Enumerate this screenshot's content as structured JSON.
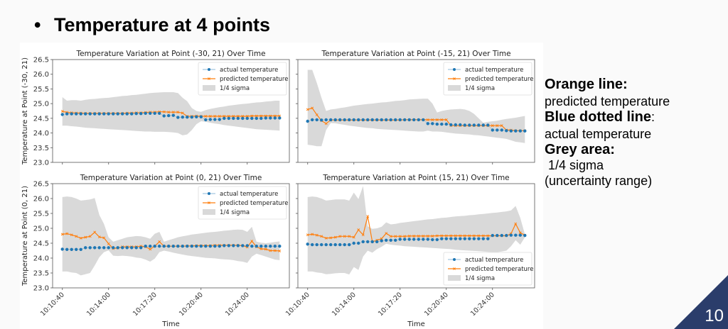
{
  "slide": {
    "bullet": "•",
    "title": "Temperature at 4 points",
    "page_number": "10",
    "accent_color": "#2b3d6b"
  },
  "notes": [
    {
      "heading": "Orange line",
      "sep": ":",
      "text": "predicted temperature"
    },
    {
      "heading": "Blue dotted line",
      "sep": ":",
      "text": "actual temperature"
    },
    {
      "heading": "Grey area:",
      "sep": "",
      "text": " 1/4 sigma",
      "text2": "(uncertainty range)"
    }
  ],
  "colors": {
    "actual": "#1f77b4",
    "predicted": "#ff7f0e",
    "sigma": "#d9d9d9"
  },
  "chart_data": [
    {
      "type": "line",
      "title": "Temperature Variation at Point (-30, 21) Over Time",
      "xlabel": "",
      "ylabel": "Temperature at Point (-30, 21)",
      "ylim": [
        23.0,
        26.5
      ],
      "yticks": [
        "23.0",
        "23.5",
        "24.0",
        "24.5",
        "25.0",
        "25.5",
        "26.0",
        "26.5"
      ],
      "xticks": [
        "10:10:40",
        "10:14:00",
        "10:17:20",
        "10:20:40",
        "10:24:00"
      ],
      "show_xtick_labels": false,
      "show_ytick_labels": true,
      "legend": [
        "actual temperature",
        "predicted temperature",
        "1/4 sigma"
      ],
      "legend_position": "top-right",
      "x_start": "10:10:40",
      "x_step_seconds": 20,
      "series": [
        {
          "name": "actual temperature",
          "values": [
            24.63,
            24.65,
            24.65,
            24.65,
            24.65,
            24.65,
            24.65,
            24.65,
            24.65,
            24.65,
            24.65,
            24.65,
            24.65,
            24.65,
            24.65,
            24.65,
            24.66,
            24.66,
            24.67,
            24.67,
            24.67,
            24.67,
            24.58,
            24.59,
            24.6,
            24.53,
            24.54,
            24.54,
            24.54,
            24.55,
            24.55,
            24.45,
            24.46,
            24.46,
            24.46,
            24.5,
            24.5,
            24.5,
            24.5,
            24.5,
            24.5,
            24.5,
            24.5,
            24.5,
            24.51,
            24.51,
            24.51,
            24.51
          ]
        },
        {
          "name": "predicted temperature",
          "values": [
            24.74,
            24.7,
            24.69,
            24.68,
            24.68,
            24.67,
            24.67,
            24.67,
            24.67,
            24.67,
            24.67,
            24.67,
            24.67,
            24.67,
            24.68,
            24.68,
            24.69,
            24.69,
            24.7,
            24.71,
            24.71,
            24.72,
            24.72,
            24.71,
            24.71,
            24.71,
            24.68,
            24.57,
            24.57,
            24.58,
            24.57,
            24.57,
            24.57,
            24.57,
            24.57,
            24.57,
            24.57,
            24.57,
            24.57,
            24.57,
            24.57,
            24.58,
            24.58,
            24.58,
            24.58,
            24.58,
            24.58,
            24.58
          ]
        },
        {
          "name": "1/4 sigma upper",
          "values": [
            25.22,
            25.1,
            25.12,
            25.12,
            25.1,
            25.13,
            25.15,
            25.16,
            25.18,
            25.19,
            25.2,
            25.22,
            25.24,
            25.26,
            25.27,
            25.29,
            25.3,
            25.32,
            25.34,
            25.36,
            25.37,
            25.38,
            25.39,
            25.39,
            25.39,
            25.36,
            25.2,
            25.08,
            24.85,
            24.75,
            24.72,
            24.78,
            24.82,
            24.85,
            24.88,
            24.9,
            24.93,
            24.95,
            24.97,
            24.99,
            25.0,
            25.02,
            25.04,
            25.05,
            25.07,
            25.08,
            25.1,
            25.1
          ]
        },
        {
          "name": "1/4 sigma lower",
          "values": [
            24.25,
            24.25,
            24.23,
            24.22,
            24.2,
            24.18,
            24.17,
            24.16,
            24.15,
            24.14,
            24.13,
            24.12,
            24.11,
            24.1,
            24.09,
            24.08,
            24.07,
            24.06,
            24.05,
            24.05,
            24.04,
            24.04,
            24.04,
            24.03,
            24.02,
            24.0,
            23.92,
            23.95,
            24.1,
            24.3,
            24.4,
            24.38,
            24.35,
            24.32,
            24.3,
            24.27,
            24.25,
            24.23,
            24.21,
            24.19,
            24.17,
            24.15,
            24.13,
            24.12,
            24.11,
            24.1,
            24.09,
            24.08
          ]
        }
      ]
    },
    {
      "type": "line",
      "title": "Temperature Variation at Point (-15, 21) Over Time",
      "xlabel": "",
      "ylabel": "",
      "ylim": [
        23.0,
        26.5
      ],
      "yticks": [
        "23.0",
        "23.5",
        "24.0",
        "24.5",
        "25.0",
        "25.5",
        "26.0",
        "26.5"
      ],
      "xticks": [
        "10:10:40",
        "10:14:00",
        "10:17:20",
        "10:20:40",
        "10:24:00"
      ],
      "show_xtick_labels": false,
      "show_ytick_labels": false,
      "legend": [
        "actual temperature",
        "predicted temperature",
        "1/4 sigma"
      ],
      "legend_position": "top-right",
      "x_start": "10:10:40",
      "x_step_seconds": 20,
      "series": [
        {
          "name": "actual temperature",
          "values": [
            24.4,
            24.45,
            24.45,
            24.44,
            24.45,
            24.45,
            24.45,
            24.45,
            24.45,
            24.45,
            24.45,
            24.45,
            24.45,
            24.45,
            24.45,
            24.45,
            24.45,
            24.45,
            24.45,
            24.45,
            24.45,
            24.45,
            24.45,
            24.45,
            24.45,
            24.45,
            24.32,
            24.32,
            24.3,
            24.3,
            24.3,
            24.28,
            24.28,
            24.28,
            24.27,
            24.27,
            24.27,
            24.27,
            24.27,
            24.27,
            24.1,
            24.1,
            24.1,
            24.08,
            24.07,
            24.07,
            24.07,
            24.07
          ]
        },
        {
          "name": "predicted temperature",
          "values": [
            24.8,
            24.85,
            24.62,
            24.42,
            24.32,
            24.44,
            24.44,
            24.44,
            24.44,
            24.44,
            24.44,
            24.44,
            24.44,
            24.44,
            24.44,
            24.44,
            24.44,
            24.44,
            24.44,
            24.44,
            24.44,
            24.45,
            24.45,
            24.45,
            24.45,
            24.45,
            24.45,
            24.45,
            24.45,
            24.45,
            24.45,
            24.25,
            24.25,
            24.25,
            24.25,
            24.25,
            24.25,
            24.25,
            24.25,
            24.25,
            24.25,
            24.25,
            24.25,
            24.1,
            24.1,
            24.08,
            24.08,
            24.08
          ]
        },
        {
          "name": "1/4 sigma upper",
          "values": [
            26.15,
            26.15,
            25.7,
            25.2,
            24.75,
            24.8,
            24.82,
            24.85,
            24.87,
            24.9,
            24.93,
            24.95,
            24.97,
            24.99,
            25.0,
            25.02,
            25.04,
            25.05,
            25.07,
            25.09,
            25.1,
            25.12,
            25.14,
            25.15,
            25.16,
            25.17,
            25.17,
            25.0,
            24.7,
            24.75,
            24.78,
            24.8,
            24.81,
            24.82,
            24.8,
            24.75,
            24.65,
            24.5,
            24.35,
            24.38,
            24.4,
            24.42,
            24.45,
            24.48,
            24.5,
            24.52,
            24.55,
            24.58
          ]
        },
        {
          "name": "1/4 sigma lower",
          "values": [
            23.6,
            23.58,
            23.55,
            23.55,
            24.1,
            24.34,
            24.33,
            24.3,
            24.28,
            24.25,
            24.23,
            24.21,
            24.19,
            24.17,
            24.16,
            24.14,
            24.13,
            24.12,
            24.11,
            24.1,
            24.09,
            24.08,
            24.07,
            24.06,
            24.05,
            24.05,
            24.08,
            24.05,
            24.05,
            24.04,
            24.02,
            24.0,
            23.98,
            23.97,
            23.96,
            23.95,
            23.93,
            23.92,
            23.9,
            23.88,
            23.86,
            23.84,
            23.82,
            23.8,
            23.75,
            23.7,
            23.68,
            23.66
          ]
        }
      ]
    },
    {
      "type": "line",
      "title": "Temperature Variation at Point (0, 21) Over Time",
      "xlabel": "Time",
      "ylabel": "Temperature at Point (0, 21)",
      "ylim": [
        23.0,
        26.5
      ],
      "yticks": [
        "23.0",
        "23.5",
        "24.0",
        "24.5",
        "25.0",
        "25.5",
        "26.0",
        "26.5"
      ],
      "xticks": [
        "10:10:40",
        "10:14:00",
        "10:17:20",
        "10:20:40",
        "10:24:00"
      ],
      "show_xtick_labels": true,
      "show_ytick_labels": true,
      "legend": [
        "actual temperature",
        "predicted temperature",
        "1/4 sigma"
      ],
      "legend_position": "top-right",
      "x_start": "10:10:40",
      "x_step_seconds": 20,
      "series": [
        {
          "name": "actual temperature",
          "values": [
            24.3,
            24.29,
            24.29,
            24.29,
            24.29,
            24.35,
            24.35,
            24.35,
            24.35,
            24.35,
            24.35,
            24.35,
            24.35,
            24.35,
            24.35,
            24.35,
            24.35,
            24.35,
            24.4,
            24.4,
            24.4,
            24.4,
            24.4,
            24.4,
            24.4,
            24.4,
            24.4,
            24.4,
            24.4,
            24.4,
            24.4,
            24.4,
            24.4,
            24.4,
            24.4,
            24.42,
            24.42,
            24.42,
            24.42,
            24.42,
            24.42,
            24.4,
            24.4,
            24.4,
            24.4,
            24.4,
            24.4,
            24.4
          ]
        },
        {
          "name": "predicted temperature",
          "values": [
            24.8,
            24.82,
            24.78,
            24.73,
            24.67,
            24.7,
            24.73,
            24.87,
            24.71,
            24.68,
            24.48,
            24.32,
            24.34,
            24.38,
            24.38,
            24.38,
            24.38,
            24.4,
            24.38,
            24.3,
            24.4,
            24.55,
            24.4,
            24.4,
            24.4,
            24.4,
            24.4,
            24.41,
            24.41,
            24.42,
            24.42,
            24.42,
            24.42,
            24.43,
            24.43,
            24.43,
            24.43,
            24.43,
            24.43,
            24.42,
            24.37,
            24.57,
            24.38,
            24.31,
            24.3,
            24.25,
            24.25,
            24.24
          ]
        },
        {
          "name": "1/4 sigma upper",
          "values": [
            26.05,
            26.07,
            26.05,
            26.0,
            25.93,
            25.95,
            25.97,
            26.02,
            25.45,
            25.15,
            24.7,
            24.55,
            24.6,
            24.65,
            24.7,
            24.72,
            24.74,
            24.73,
            24.7,
            24.65,
            24.82,
            24.88,
            24.55,
            24.6,
            24.65,
            24.7,
            24.73,
            24.76,
            24.79,
            24.81,
            24.83,
            24.85,
            24.87,
            24.88,
            24.9,
            24.92,
            24.93,
            24.95,
            24.96,
            24.95,
            24.88,
            25.05,
            24.55,
            24.52,
            24.5,
            24.52,
            24.54,
            24.56
          ]
        },
        {
          "name": "1/4 sigma lower",
          "values": [
            23.55,
            23.55,
            23.52,
            23.5,
            23.42,
            23.46,
            23.5,
            23.75,
            24.03,
            24.2,
            24.26,
            24.08,
            24.07,
            24.08,
            24.07,
            24.05,
            24.02,
            24.0,
            23.95,
            23.88,
            23.98,
            24.2,
            24.25,
            24.22,
            24.18,
            24.15,
            24.12,
            24.09,
            24.07,
            24.05,
            24.03,
            24.01,
            24.0,
            23.99,
            23.97,
            23.96,
            23.95,
            23.93,
            23.9,
            23.88,
            23.84,
            24.05,
            24.15,
            24.1,
            24.05,
            24.0,
            23.95,
            23.93
          ]
        }
      ]
    },
    {
      "type": "line",
      "title": "Temperature Variation at Point (15, 21) Over Time",
      "xlabel": "Time",
      "ylabel": "",
      "ylim": [
        23.0,
        26.5
      ],
      "yticks": [
        "23.0",
        "23.5",
        "24.0",
        "24.5",
        "25.0",
        "25.5",
        "26.0",
        "26.5"
      ],
      "xticks": [
        "10:10:40",
        "10:14:00",
        "10:17:20",
        "10:20:40",
        "10:24:00"
      ],
      "show_xtick_labels": true,
      "show_ytick_labels": false,
      "legend": [
        "actual temperature",
        "predicted temperature",
        "1/4 sigma"
      ],
      "legend_position": "bottom-right",
      "x_start": "10:10:40",
      "x_step_seconds": 20,
      "series": [
        {
          "name": "actual temperature",
          "values": [
            24.47,
            24.45,
            24.45,
            24.45,
            24.45,
            24.45,
            24.45,
            24.45,
            24.45,
            24.45,
            24.5,
            24.5,
            24.55,
            24.55,
            24.55,
            24.55,
            24.58,
            24.6,
            24.6,
            24.6,
            24.63,
            24.63,
            24.63,
            24.63,
            24.63,
            24.63,
            24.63,
            24.62,
            24.62,
            24.65,
            24.65,
            24.65,
            24.65,
            24.65,
            24.65,
            24.65,
            24.65,
            24.65,
            24.65,
            24.65,
            24.76,
            24.76,
            24.76,
            24.76,
            24.77,
            24.77,
            24.77,
            24.76
          ]
        },
        {
          "name": "predicted temperature",
          "values": [
            24.78,
            24.8,
            24.77,
            24.73,
            24.67,
            24.68,
            24.7,
            24.73,
            24.73,
            24.73,
            24.7,
            24.95,
            24.78,
            25.4,
            24.55,
            24.6,
            24.65,
            24.83,
            24.73,
            24.73,
            24.73,
            24.73,
            24.74,
            24.74,
            24.74,
            24.74,
            24.74,
            24.74,
            24.75,
            24.75,
            24.75,
            24.75,
            24.75,
            24.75,
            24.75,
            24.75,
            24.75,
            24.75,
            24.75,
            24.75,
            24.75,
            24.75,
            24.75,
            24.75,
            24.82,
            25.15,
            24.85,
            24.77
          ]
        },
        {
          "name": "1/4 sigma upper",
          "values": [
            26.05,
            26.07,
            26.05,
            26.0,
            25.93,
            25.95,
            25.97,
            25.97,
            25.97,
            25.93,
            26.2,
            25.98,
            26.42,
            25.07,
            24.98,
            25.0,
            25.05,
            25.2,
            25.13,
            25.15,
            25.18,
            25.2,
            25.22,
            25.24,
            25.26,
            25.28,
            25.3,
            25.31,
            25.33,
            25.35,
            25.36,
            25.38,
            25.4,
            25.41,
            25.42,
            25.44,
            25.45,
            25.47,
            25.48,
            25.5,
            25.52,
            25.53,
            25.55,
            25.57,
            25.6,
            25.75,
            25.35,
            24.8
          ]
        },
        {
          "name": "1/4 sigma lower",
          "values": [
            23.55,
            23.55,
            23.52,
            23.5,
            23.46,
            23.47,
            23.49,
            23.5,
            23.5,
            23.45,
            23.7,
            23.6,
            24.05,
            24.25,
            24.18,
            24.3,
            24.38,
            24.48,
            24.45,
            24.43,
            24.42,
            24.4,
            24.39,
            24.38,
            24.37,
            24.36,
            24.35,
            24.34,
            24.33,
            24.32,
            24.31,
            24.3,
            24.28,
            24.27,
            24.26,
            24.25,
            24.24,
            24.23,
            24.22,
            24.21,
            24.2,
            24.2,
            24.22,
            24.25,
            24.4,
            24.6,
            24.45,
            24.7
          ]
        }
      ]
    }
  ]
}
